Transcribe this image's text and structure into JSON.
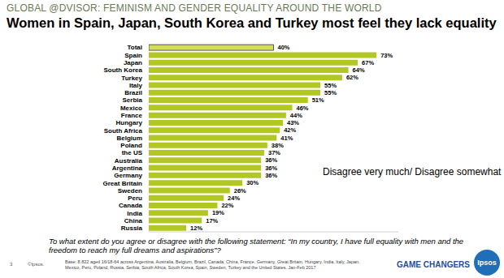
{
  "chart_data": {
    "type": "bar",
    "header": "GLOBAL @DVISOR: FEMINISM AND GENDER EQUALITY AROUND THE WORLD",
    "title": "Women in Spain, Japan, South Korea and Turkey most feel they lack equality",
    "annotation": "Disagree very much/ Disagree somewhat",
    "question": "To what extent do you agree or disagree with the following statement: “In my country, I have full equality with men and the freedom to reach my full dreams and aspirations”?",
    "page_number": "3",
    "copyright": "©Ipsos.",
    "base_note": "Base: 8,822 aged 16/18-64 across Argentina, Australia, Belgium, Brazil, Canada, China, France, Germany, Great Britain, Hungary, India, Italy, Japan, Mexico, Peru, Poland, Russia, Serbia, South Africa, South Korea, Spain, Sweden, Turkey and the United States. Jan-Feb 2017",
    "brand": "GAME CHANGERS",
    "logo": "Ipsos",
    "categories": [
      "Total",
      "Spain",
      "Japan",
      "South Korea",
      "Turkey",
      "Italy",
      "Brazil",
      "Serbia",
      "Mexico",
      "France",
      "Hungary",
      "South Africa",
      "Belgium",
      "Poland",
      "the US",
      "Australia",
      "Argentina",
      "Germany",
      "Great Britain",
      "Sweden",
      "Peru",
      "Canada",
      "India",
      "China",
      "Russia"
    ],
    "values": [
      40,
      73,
      67,
      64,
      62,
      55,
      55,
      51,
      46,
      44,
      43,
      42,
      41,
      38,
      37,
      36,
      36,
      36,
      30,
      26,
      24,
      22,
      19,
      17,
      12
    ],
    "value_labels": [
      "40%",
      "73%",
      "67%",
      "64%",
      "62%",
      "55%",
      "55%",
      "51%",
      "46%",
      "44%",
      "43%",
      "42%",
      "41%",
      "38%",
      "37%",
      "36%",
      "36%",
      "36%",
      "30%",
      "26%",
      "24%",
      "22%",
      "19%",
      "17%",
      "12%"
    ],
    "orientation": "horizontal",
    "data_labels": true,
    "tick_labels": "y",
    "xlim": [
      0,
      80
    ],
    "colors": [
      "#d3dc5a",
      "#b2c624",
      "#b2c624",
      "#b2c624",
      "#b2c624",
      "#b2c624",
      "#b2c624",
      "#b2c624",
      "#b2c624",
      "#b2c624",
      "#b2c624",
      "#b2c624",
      "#b2c624",
      "#b2c624",
      "#b2c624",
      "#b2c624",
      "#b2c624",
      "#b2c624",
      "#b2c624",
      "#b2c624",
      "#b2c624",
      "#b2c624",
      "#b2c624",
      "#b2c624",
      "#b2c624"
    ]
  }
}
